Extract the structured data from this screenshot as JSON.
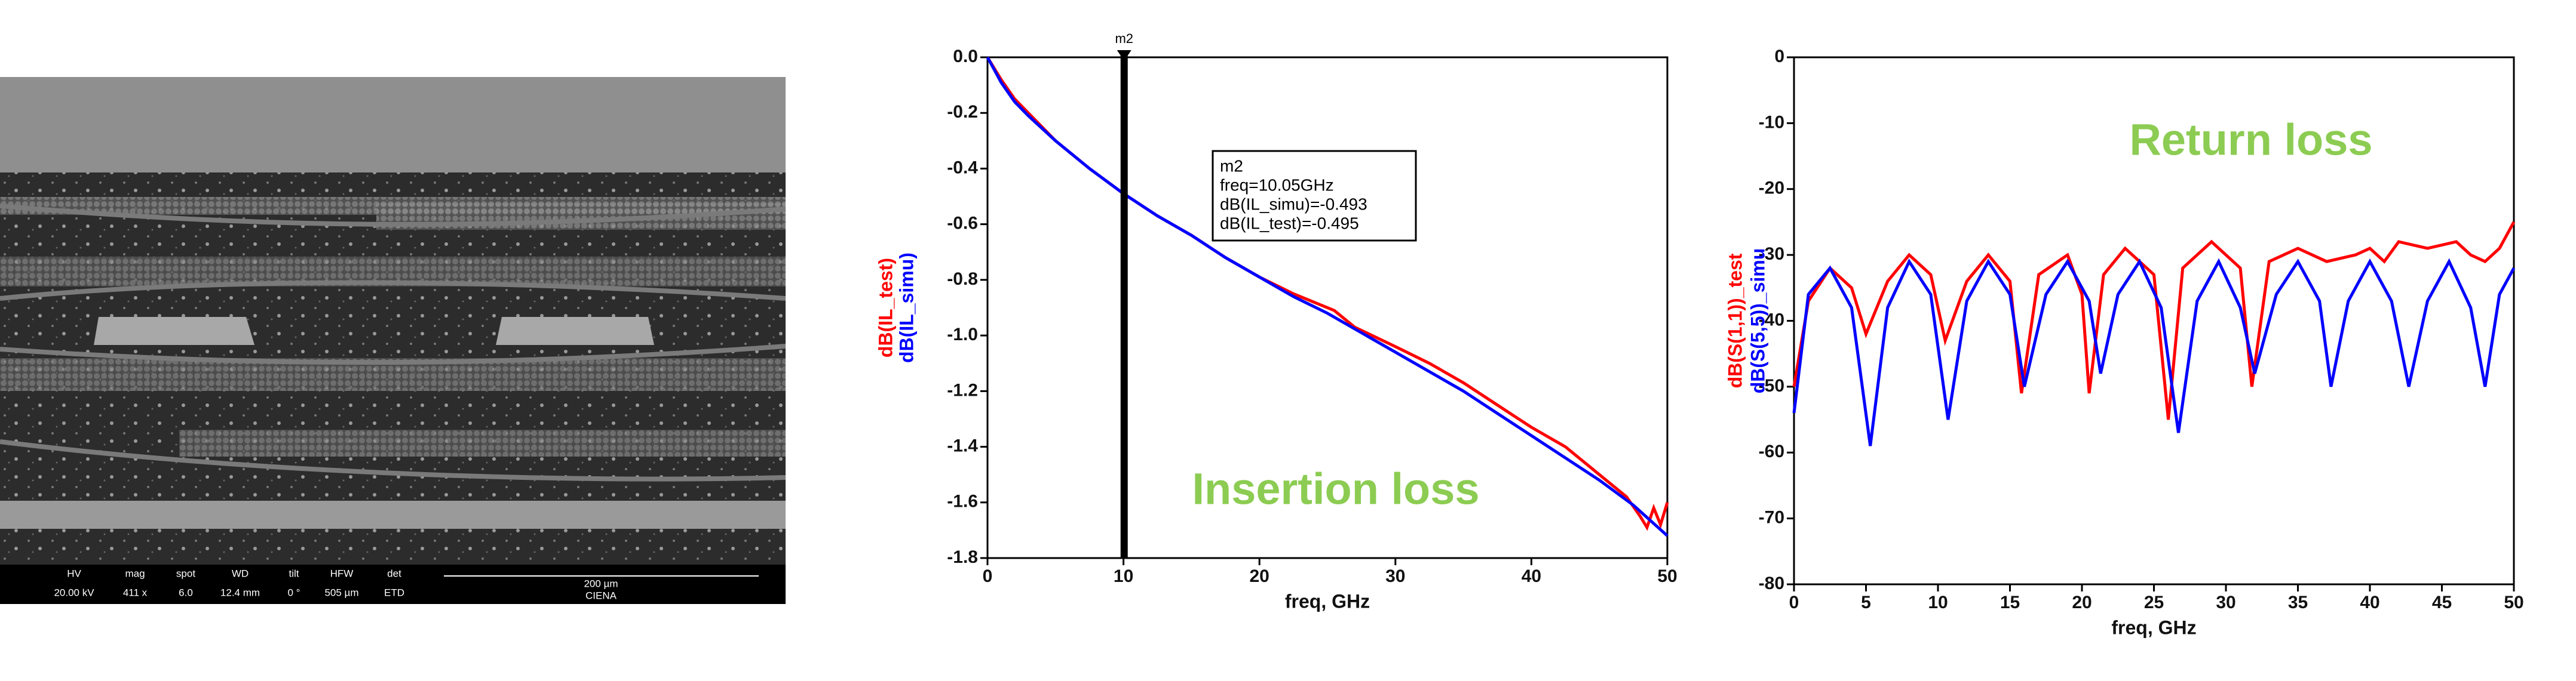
{
  "sem_info": {
    "labels": [
      "HV",
      "mag",
      "spot",
      "WD",
      "tilt",
      "HFW",
      "det"
    ],
    "values": [
      "20.00 kV",
      "411 x",
      "6.0",
      "12.4 mm",
      "0 °",
      "505 µm",
      "ETD"
    ],
    "scale_bar": "200 µm",
    "detector_name": "CIENA"
  },
  "chart_data": [
    {
      "type": "line",
      "x_label": "freq, GHz",
      "annotation": "Insertion loss",
      "xlim": [
        0,
        50
      ],
      "xticks": [
        0,
        10,
        20,
        30,
        40,
        50
      ],
      "ylim": [
        -1.8,
        0
      ],
      "yticks": [
        {
          "value": 0,
          "label": "0.0"
        },
        -0.2,
        -0.4,
        -0.6,
        -0.8,
        {
          "value": -1,
          "label": "-1.0"
        },
        -1.2,
        -1.4,
        -1.6,
        -1.8
      ],
      "marker": {
        "name": "m2",
        "x": 10.05,
        "lines": [
          "m2",
          "freq=10.05GHz",
          "dB(IL_simu)=-0.493",
          "dB(IL_test)=-0.495"
        ]
      },
      "series": [
        {
          "name": "dB(IL_test)",
          "color": "#ff0000",
          "x": [
            0,
            1,
            2,
            3,
            5,
            7.5,
            10,
            12.5,
            15,
            17.5,
            20,
            22.5,
            24,
            25.5,
            27,
            30,
            32.5,
            35,
            37.5,
            40,
            42.5,
            45,
            47,
            48,
            48.5,
            49,
            49.5,
            50
          ],
          "values": [
            0,
            -0.08,
            -0.15,
            -0.2,
            -0.3,
            -0.4,
            -0.49,
            -0.57,
            -0.64,
            -0.72,
            -0.79,
            -0.85,
            -0.88,
            -0.91,
            -0.97,
            -1.04,
            -1.1,
            -1.17,
            -1.25,
            -1.33,
            -1.4,
            -1.5,
            -1.58,
            -1.65,
            -1.69,
            -1.62,
            -1.68,
            -1.6
          ]
        },
        {
          "name": "dB(IL_simu)",
          "color": "#0000ff",
          "x": [
            0,
            1,
            2,
            3,
            5,
            7.5,
            10,
            12.5,
            15,
            17.5,
            20,
            22.5,
            25,
            27.5,
            30,
            32.5,
            35,
            37.5,
            40,
            42.5,
            45,
            47.5,
            50
          ],
          "values": [
            0,
            -0.09,
            -0.16,
            -0.21,
            -0.3,
            -0.4,
            -0.49,
            -0.57,
            -0.64,
            -0.72,
            -0.79,
            -0.86,
            -0.92,
            -0.99,
            -1.06,
            -1.13,
            -1.2,
            -1.28,
            -1.36,
            -1.44,
            -1.52,
            -1.61,
            -1.72
          ]
        }
      ]
    },
    {
      "type": "line",
      "x_label": "freq, GHz",
      "annotation": "Return loss",
      "xlim": [
        0,
        50
      ],
      "xticks": [
        0,
        5,
        10,
        15,
        20,
        25,
        30,
        35,
        40,
        45,
        50
      ],
      "ylim": [
        -80,
        0
      ],
      "yticks": [
        0,
        -10,
        -20,
        -30,
        -40,
        -50,
        -60,
        -70,
        -80
      ],
      "series": [
        {
          "name": "dB(S(1,1))_test",
          "color": "#ff0000",
          "x": [
            0,
            1,
            2.5,
            4,
            5,
            6.5,
            8,
            9.5,
            10.5,
            12,
            13.5,
            15,
            15.8,
            17,
            19,
            20,
            20.5,
            21.5,
            23,
            25,
            26,
            27,
            29,
            31,
            31.8,
            33,
            35,
            37,
            39,
            40,
            41,
            42,
            44,
            46,
            47,
            48,
            49,
            50
          ],
          "values": [
            -50,
            -37,
            -32,
            -35,
            -42,
            -34,
            -30,
            -33,
            -43,
            -34,
            -30,
            -34,
            -51,
            -33,
            -30,
            -36,
            -51,
            -33,
            -29,
            -33,
            -55,
            -32,
            -28,
            -32,
            -50,
            -31,
            -29,
            -31,
            -30,
            -29,
            -31,
            -28,
            -29,
            -28,
            -30,
            -31,
            -29,
            -25
          ]
        },
        {
          "name": "dB(S(5,5))_simu",
          "color": "#0000ff",
          "x": [
            0,
            1,
            2.5,
            4,
            5.3,
            6.5,
            8,
            9.5,
            10.7,
            12,
            13.5,
            15,
            16,
            17.5,
            19,
            20.5,
            21.3,
            22.5,
            24,
            25.5,
            26.7,
            28,
            29.5,
            31,
            32,
            33.5,
            35,
            36.5,
            37.3,
            38.5,
            40,
            41.5,
            42.7,
            44,
            45.5,
            47,
            48,
            49,
            50
          ],
          "values": [
            -54,
            -36,
            -32,
            -38,
            -59,
            -38,
            -31,
            -36,
            -55,
            -37,
            -31,
            -36,
            -50,
            -36,
            -31,
            -37,
            -48,
            -36,
            -31,
            -38,
            -57,
            -37,
            -31,
            -38,
            -48,
            -36,
            -31,
            -37,
            -50,
            -37,
            -31,
            -37,
            -50,
            -37,
            -31,
            -38,
            -50,
            -36,
            -32
          ]
        }
      ]
    }
  ]
}
